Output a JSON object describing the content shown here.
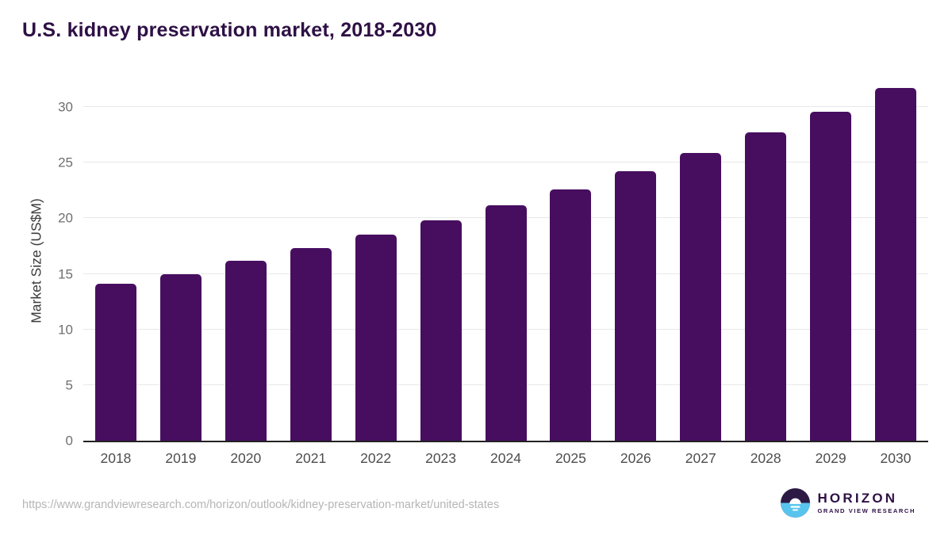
{
  "title": "U.S. kidney preservation market, 2018-2030",
  "footer": {
    "source_url": "https://www.grandviewresearch.com/horizon/outlook/kidney-preservation-market/united-states",
    "logo_name": "HORIZON",
    "logo_subtitle": "GRAND VIEW RESEARCH"
  },
  "colors": {
    "bar": "#470e60",
    "title_text": "#2e1045",
    "gridline": "#e8e8e8",
    "axis_line": "#222222",
    "y_tick_text": "#6f6f6f",
    "x_tick_text": "#4d4d4d",
    "source_text": "#b5b5b5",
    "logo_dark_half": "#2c1a45",
    "logo_blue_half": "#58c4ee"
  },
  "chart_data": {
    "type": "bar",
    "title": "U.S. kidney preservation market, 2018-2030",
    "categories": [
      "2018",
      "2019",
      "2020",
      "2021",
      "2022",
      "2023",
      "2024",
      "2025",
      "2026",
      "2027",
      "2028",
      "2029",
      "2030"
    ],
    "values": [
      14.1,
      15.0,
      16.2,
      17.3,
      18.5,
      19.8,
      21.2,
      22.6,
      24.2,
      25.9,
      27.7,
      29.6,
      31.7
    ],
    "xlabel": "",
    "ylabel": "Market Size (US$M)",
    "ylim": [
      0,
      32.5
    ],
    "yticks": [
      0,
      5,
      10,
      15,
      20,
      25,
      30
    ],
    "grid": true,
    "legend": false,
    "bar_color": "#470e60"
  }
}
